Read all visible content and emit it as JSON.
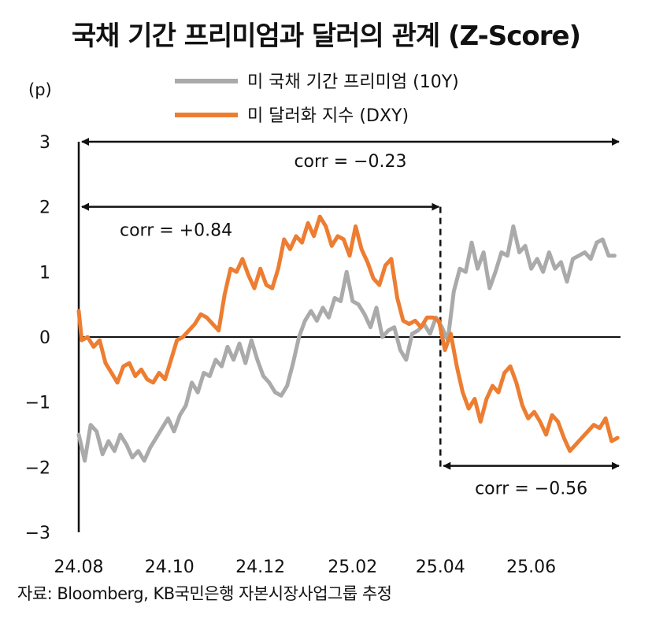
{
  "chart_data": {
    "type": "line",
    "title": "국채 기간 프리미엄과 달러의 관계 (Z-Score)",
    "ylabel": "(p)",
    "ylim": [
      -3,
      3
    ],
    "yticks": [
      "3",
      "2",
      "1",
      "0",
      "−1",
      "−2",
      "−3"
    ],
    "xlim": [
      "2024-08-01",
      "2025-07-31"
    ],
    "xticks": [
      {
        "date": "2024-08-01",
        "label": "24.08"
      },
      {
        "date": "2024-10-01",
        "label": "24.10"
      },
      {
        "date": "2024-12-01",
        "label": "24.12"
      },
      {
        "date": "2025-02-01",
        "label": "25.02"
      },
      {
        "date": "2025-04-01",
        "label": "25.04"
      },
      {
        "date": "2025-06-01",
        "label": "25.06"
      }
    ],
    "legend": "top",
    "series": [
      {
        "name": "미 국채 기간 프리미엄 (10Y)",
        "color": "#aaaaaa",
        "points": [
          [
            "2024-08-01",
            -1.5
          ],
          [
            "2024-08-05",
            -1.9
          ],
          [
            "2024-08-09",
            -1.35
          ],
          [
            "2024-08-13",
            -1.45
          ],
          [
            "2024-08-17",
            -1.8
          ],
          [
            "2024-08-21",
            -1.6
          ],
          [
            "2024-08-25",
            -1.75
          ],
          [
            "2024-08-29",
            -1.5
          ],
          [
            "2024-09-02",
            -1.65
          ],
          [
            "2024-09-06",
            -1.85
          ],
          [
            "2024-09-10",
            -1.75
          ],
          [
            "2024-09-14",
            -1.9
          ],
          [
            "2024-09-18",
            -1.7
          ],
          [
            "2024-09-22",
            -1.55
          ],
          [
            "2024-09-26",
            -1.4
          ],
          [
            "2024-09-30",
            -1.25
          ],
          [
            "2024-10-04",
            -1.45
          ],
          [
            "2024-10-08",
            -1.2
          ],
          [
            "2024-10-12",
            -1.05
          ],
          [
            "2024-10-16",
            -0.7
          ],
          [
            "2024-10-20",
            -0.85
          ],
          [
            "2024-10-24",
            -0.55
          ],
          [
            "2024-10-28",
            -0.6
          ],
          [
            "2024-11-01",
            -0.35
          ],
          [
            "2024-11-05",
            -0.45
          ],
          [
            "2024-11-09",
            -0.15
          ],
          [
            "2024-11-13",
            -0.35
          ],
          [
            "2024-11-17",
            -0.1
          ],
          [
            "2024-11-21",
            -0.4
          ],
          [
            "2024-11-25",
            -0.05
          ],
          [
            "2024-11-29",
            -0.35
          ],
          [
            "2024-12-03",
            -0.6
          ],
          [
            "2024-12-07",
            -0.7
          ],
          [
            "2024-12-11",
            -0.85
          ],
          [
            "2024-12-15",
            -0.9
          ],
          [
            "2024-12-19",
            -0.75
          ],
          [
            "2024-12-23",
            -0.4
          ],
          [
            "2024-12-27",
            0.0
          ],
          [
            "2024-12-31",
            0.25
          ],
          [
            "2025-01-04",
            0.4
          ],
          [
            "2025-01-08",
            0.25
          ],
          [
            "2025-01-12",
            0.45
          ],
          [
            "2025-01-16",
            0.3
          ],
          [
            "2025-01-20",
            0.6
          ],
          [
            "2025-01-24",
            0.55
          ],
          [
            "2025-01-28",
            1.0
          ],
          [
            "2025-02-01",
            0.55
          ],
          [
            "2025-02-05",
            0.5
          ],
          [
            "2025-02-09",
            0.35
          ],
          [
            "2025-02-13",
            0.15
          ],
          [
            "2025-02-17",
            0.45
          ],
          [
            "2025-02-21",
            0.0
          ],
          [
            "2025-02-25",
            0.1
          ],
          [
            "2025-03-01",
            0.15
          ],
          [
            "2025-03-05",
            -0.2
          ],
          [
            "2025-03-09",
            -0.35
          ],
          [
            "2025-03-13",
            0.05
          ],
          [
            "2025-03-17",
            0.1
          ],
          [
            "2025-03-21",
            0.2
          ],
          [
            "2025-03-25",
            0.05
          ],
          [
            "2025-03-29",
            0.3
          ],
          [
            "2025-04-02",
            0.15
          ],
          [
            "2025-04-06",
            -0.05
          ],
          [
            "2025-04-10",
            0.7
          ],
          [
            "2025-04-14",
            1.05
          ],
          [
            "2025-04-18",
            1.0
          ],
          [
            "2025-04-22",
            1.45
          ],
          [
            "2025-04-26",
            1.05
          ],
          [
            "2025-04-30",
            1.3
          ],
          [
            "2025-05-04",
            0.75
          ],
          [
            "2025-05-08",
            1.0
          ],
          [
            "2025-05-12",
            1.3
          ],
          [
            "2025-05-16",
            1.25
          ],
          [
            "2025-05-20",
            1.7
          ],
          [
            "2025-05-24",
            1.3
          ],
          [
            "2025-05-28",
            1.4
          ],
          [
            "2025-06-01",
            1.05
          ],
          [
            "2025-06-05",
            1.2
          ],
          [
            "2025-06-09",
            1.0
          ],
          [
            "2025-06-13",
            1.3
          ],
          [
            "2025-06-17",
            1.05
          ],
          [
            "2025-06-21",
            1.15
          ],
          [
            "2025-06-25",
            0.85
          ],
          [
            "2025-06-29",
            1.2
          ],
          [
            "2025-07-03",
            1.25
          ],
          [
            "2025-07-07",
            1.3
          ],
          [
            "2025-07-11",
            1.2
          ],
          [
            "2025-07-15",
            1.45
          ],
          [
            "2025-07-19",
            1.5
          ],
          [
            "2025-07-23",
            1.25
          ],
          [
            "2025-07-27",
            1.25
          ]
        ]
      },
      {
        "name": "미 달러화 지수 (DXY)",
        "color": "#ed7d31",
        "points": [
          [
            "2024-08-01",
            0.4
          ],
          [
            "2024-08-03",
            -0.05
          ],
          [
            "2024-08-07",
            0.0
          ],
          [
            "2024-08-11",
            -0.15
          ],
          [
            "2024-08-15",
            -0.05
          ],
          [
            "2024-08-19",
            -0.4
          ],
          [
            "2024-08-23",
            -0.55
          ],
          [
            "2024-08-27",
            -0.7
          ],
          [
            "2024-08-31",
            -0.45
          ],
          [
            "2024-09-04",
            -0.4
          ],
          [
            "2024-09-08",
            -0.6
          ],
          [
            "2024-09-12",
            -0.5
          ],
          [
            "2024-09-16",
            -0.65
          ],
          [
            "2024-09-20",
            -0.7
          ],
          [
            "2024-09-24",
            -0.55
          ],
          [
            "2024-09-28",
            -0.65
          ],
          [
            "2024-10-02",
            -0.35
          ],
          [
            "2024-10-06",
            -0.05
          ],
          [
            "2024-10-10",
            0.0
          ],
          [
            "2024-10-14",
            0.1
          ],
          [
            "2024-10-18",
            0.2
          ],
          [
            "2024-10-22",
            0.35
          ],
          [
            "2024-10-26",
            0.3
          ],
          [
            "2024-10-30",
            0.2
          ],
          [
            "2024-11-03",
            0.1
          ],
          [
            "2024-11-07",
            0.65
          ],
          [
            "2024-11-11",
            1.05
          ],
          [
            "2024-11-15",
            1.0
          ],
          [
            "2024-11-19",
            1.2
          ],
          [
            "2024-11-23",
            0.95
          ],
          [
            "2024-11-27",
            0.75
          ],
          [
            "2024-12-01",
            1.05
          ],
          [
            "2024-12-05",
            0.8
          ],
          [
            "2024-12-09",
            0.75
          ],
          [
            "2024-12-13",
            1.05
          ],
          [
            "2024-12-17",
            1.5
          ],
          [
            "2024-12-21",
            1.35
          ],
          [
            "2024-12-25",
            1.55
          ],
          [
            "2024-12-29",
            1.45
          ],
          [
            "2025-01-02",
            1.75
          ],
          [
            "2025-01-06",
            1.55
          ],
          [
            "2025-01-10",
            1.85
          ],
          [
            "2025-01-14",
            1.7
          ],
          [
            "2025-01-18",
            1.4
          ],
          [
            "2025-01-22",
            1.55
          ],
          [
            "2025-01-26",
            1.5
          ],
          [
            "2025-01-30",
            1.25
          ],
          [
            "2025-02-03",
            1.7
          ],
          [
            "2025-02-07",
            1.35
          ],
          [
            "2025-02-11",
            1.15
          ],
          [
            "2025-02-15",
            0.9
          ],
          [
            "2025-02-19",
            0.8
          ],
          [
            "2025-02-23",
            1.1
          ],
          [
            "2025-02-27",
            1.2
          ],
          [
            "2025-03-03",
            0.6
          ],
          [
            "2025-03-07",
            0.25
          ],
          [
            "2025-03-11",
            0.2
          ],
          [
            "2025-03-15",
            0.25
          ],
          [
            "2025-03-19",
            0.15
          ],
          [
            "2025-03-23",
            0.3
          ],
          [
            "2025-03-27",
            0.3
          ],
          [
            "2025-03-31",
            0.25
          ],
          [
            "2025-04-04",
            -0.2
          ],
          [
            "2025-04-08",
            0.05
          ],
          [
            "2025-04-12",
            -0.45
          ],
          [
            "2025-04-16",
            -0.85
          ],
          [
            "2025-04-20",
            -1.1
          ],
          [
            "2025-04-24",
            -0.95
          ],
          [
            "2025-04-28",
            -1.3
          ],
          [
            "2025-05-02",
            -0.95
          ],
          [
            "2025-05-06",
            -0.75
          ],
          [
            "2025-05-10",
            -0.85
          ],
          [
            "2025-05-14",
            -0.55
          ],
          [
            "2025-05-18",
            -0.45
          ],
          [
            "2025-05-22",
            -0.7
          ],
          [
            "2025-05-26",
            -1.05
          ],
          [
            "2025-05-30",
            -1.25
          ],
          [
            "2025-06-03",
            -1.15
          ],
          [
            "2025-06-07",
            -1.3
          ],
          [
            "2025-06-11",
            -1.5
          ],
          [
            "2025-06-15",
            -1.2
          ],
          [
            "2025-06-19",
            -1.3
          ],
          [
            "2025-06-23",
            -1.55
          ],
          [
            "2025-06-27",
            -1.75
          ],
          [
            "2025-07-01",
            -1.65
          ],
          [
            "2025-07-05",
            -1.55
          ],
          [
            "2025-07-09",
            -1.45
          ],
          [
            "2025-07-13",
            -1.35
          ],
          [
            "2025-07-17",
            -1.4
          ],
          [
            "2025-07-21",
            -1.25
          ],
          [
            "2025-07-25",
            -1.6
          ],
          [
            "2025-07-29",
            -1.55
          ]
        ]
      }
    ],
    "annotations": [
      {
        "text": "corr = −0.23",
        "from": "2024-08-01",
        "to": "2025-07-31",
        "y": 3.0
      },
      {
        "text": "corr = +0.84",
        "from": "2024-08-01",
        "to": "2025-04-01",
        "y": 2.0
      },
      {
        "text": "corr = −0.56",
        "from": "2025-04-01",
        "to": "2025-07-31",
        "y": -1.98
      }
    ],
    "divider": {
      "date": "2025-04-01",
      "from_y": 2.0,
      "to_y": -2.0
    }
  },
  "source": "자료: Bloomberg, KB국민은행 자본시장사업그룹 추정"
}
